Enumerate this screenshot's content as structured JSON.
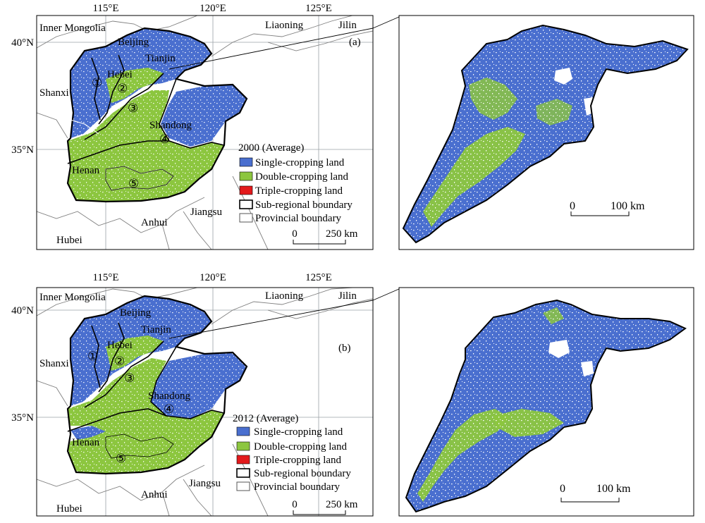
{
  "colors": {
    "single": "#4a6fcf",
    "double": "#8cc63f",
    "triple": "#e31a1c",
    "frame": "#000000",
    "grid": "#9aa0a6",
    "outside_boundary": "#7f7f7f"
  },
  "map_common": {
    "lon_labels": [
      "115°E",
      "120°E",
      "125°E"
    ],
    "lat_labels": [
      "40°N",
      "35°N"
    ],
    "provinces": {
      "inner_mongolia": "Inner Mongolia",
      "beijing": "Beijing",
      "tianjin": "Tianjin",
      "hebei": "Hebei",
      "shanxi": "Shanxi",
      "shandong": "Shandong",
      "henan": "Henan",
      "anhui": "Anhui",
      "jiangsu": "Jiangsu",
      "hubei": "Hubei",
      "liaoning": "Liaoning",
      "jilin": "Jilin"
    },
    "subregions": [
      "①",
      "②",
      "③",
      "④",
      "⑤"
    ],
    "legend_items": {
      "single": "Single-cropping land",
      "double": "Double-cropping land",
      "triple": "Triple-cropping land",
      "subregional": "Sub-regional boundary",
      "provincial": "Provincial boundary"
    },
    "scale_main": {
      "zero": "0",
      "value": "250 km"
    },
    "scale_inset": {
      "zero": "0",
      "value": "100 km"
    }
  },
  "panels": [
    {
      "tag": "(a)",
      "legend_title": "2000 (Average)"
    },
    {
      "tag": "(b)",
      "legend_title": "2012 (Average)"
    }
  ]
}
